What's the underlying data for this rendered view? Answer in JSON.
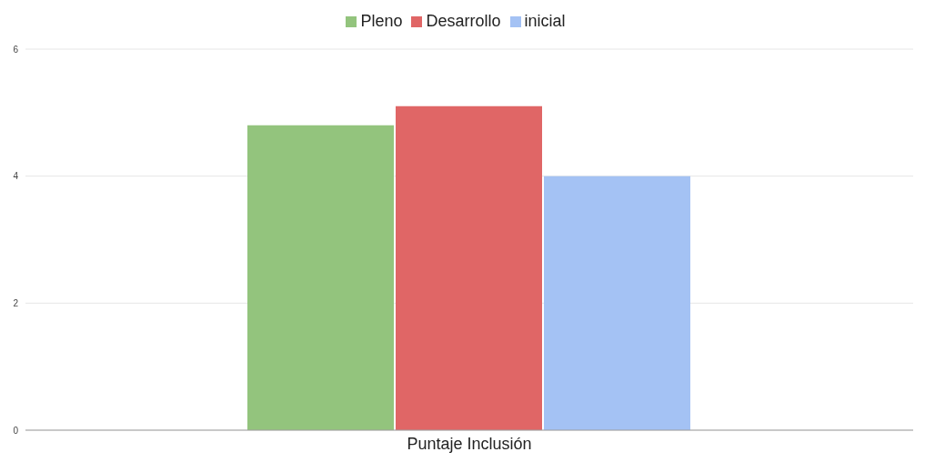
{
  "chart_data": {
    "type": "bar",
    "categories": [
      "Puntaje Inclusión"
    ],
    "series": [
      {
        "name": "Pleno",
        "color": "#93c47d",
        "values": [
          4.8
        ]
      },
      {
        "name": "Desarrollo",
        "color": "#e06666",
        "values": [
          5.1
        ]
      },
      {
        "name": "inicial",
        "color": "#a4c2f4",
        "values": [
          4
        ]
      }
    ],
    "ylim": [
      0,
      6
    ],
    "yticks": [
      0,
      2,
      4,
      6
    ],
    "grid": "y",
    "legend": "top"
  }
}
